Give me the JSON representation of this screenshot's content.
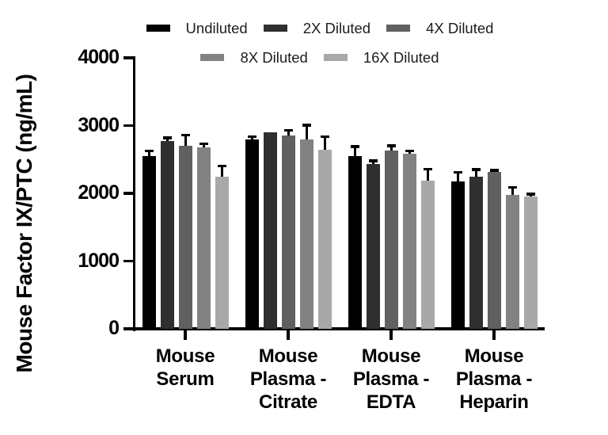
{
  "window": {
    "background": "#ffffff",
    "axis_color": "#000000",
    "text_color": "#000000"
  },
  "chart_data": {
    "type": "bar",
    "title": "",
    "xlabel": "",
    "ylabel": "Mouse Factor IX/PTC (ng/mL)",
    "ylim": [
      0,
      4000
    ],
    "yticks": [
      0,
      1000,
      2000,
      3000,
      4000
    ],
    "grid": false,
    "legend_position": "top",
    "legend_rows": [
      [
        0,
        1,
        2
      ],
      [
        3,
        4
      ]
    ],
    "categories": [
      "Mouse Serum",
      "Mouse Plasma - Citrate",
      "Mouse Plasma - EDTA",
      "Mouse Plasma - Heparin"
    ],
    "category_labels_multiline": [
      "Mouse\nSerum",
      "Mouse\nPlasma -\nCitrate",
      "Mouse\nPlasma -\nEDTA",
      "Mouse\nPlasma -\nHeparin"
    ],
    "series": [
      {
        "name": "Undiluted",
        "color": "#000000",
        "values": [
          2550,
          2790,
          2550,
          2180
        ],
        "errors": [
          85,
          55,
          150,
          140
        ]
      },
      {
        "name": "2X Diluted",
        "color": "#2f2f2f",
        "values": [
          2770,
          2900,
          2430,
          2250
        ],
        "errors": [
          55,
          0,
          60,
          110
        ]
      },
      {
        "name": "4X Diluted",
        "color": "#606060",
        "values": [
          2700,
          2850,
          2630,
          2320
        ],
        "errors": [
          170,
          90,
          80,
          30
        ]
      },
      {
        "name": "8X Diluted",
        "color": "#828282",
        "values": [
          2680,
          2790,
          2580,
          1980
        ],
        "errors": [
          60,
          225,
          55,
          115
        ]
      },
      {
        "name": "16X Diluted",
        "color": "#a8a8a8",
        "values": [
          2250,
          2640,
          2190,
          1950
        ],
        "errors": [
          160,
          205,
          175,
          50
        ]
      }
    ],
    "error_bar_color": "#000000"
  }
}
